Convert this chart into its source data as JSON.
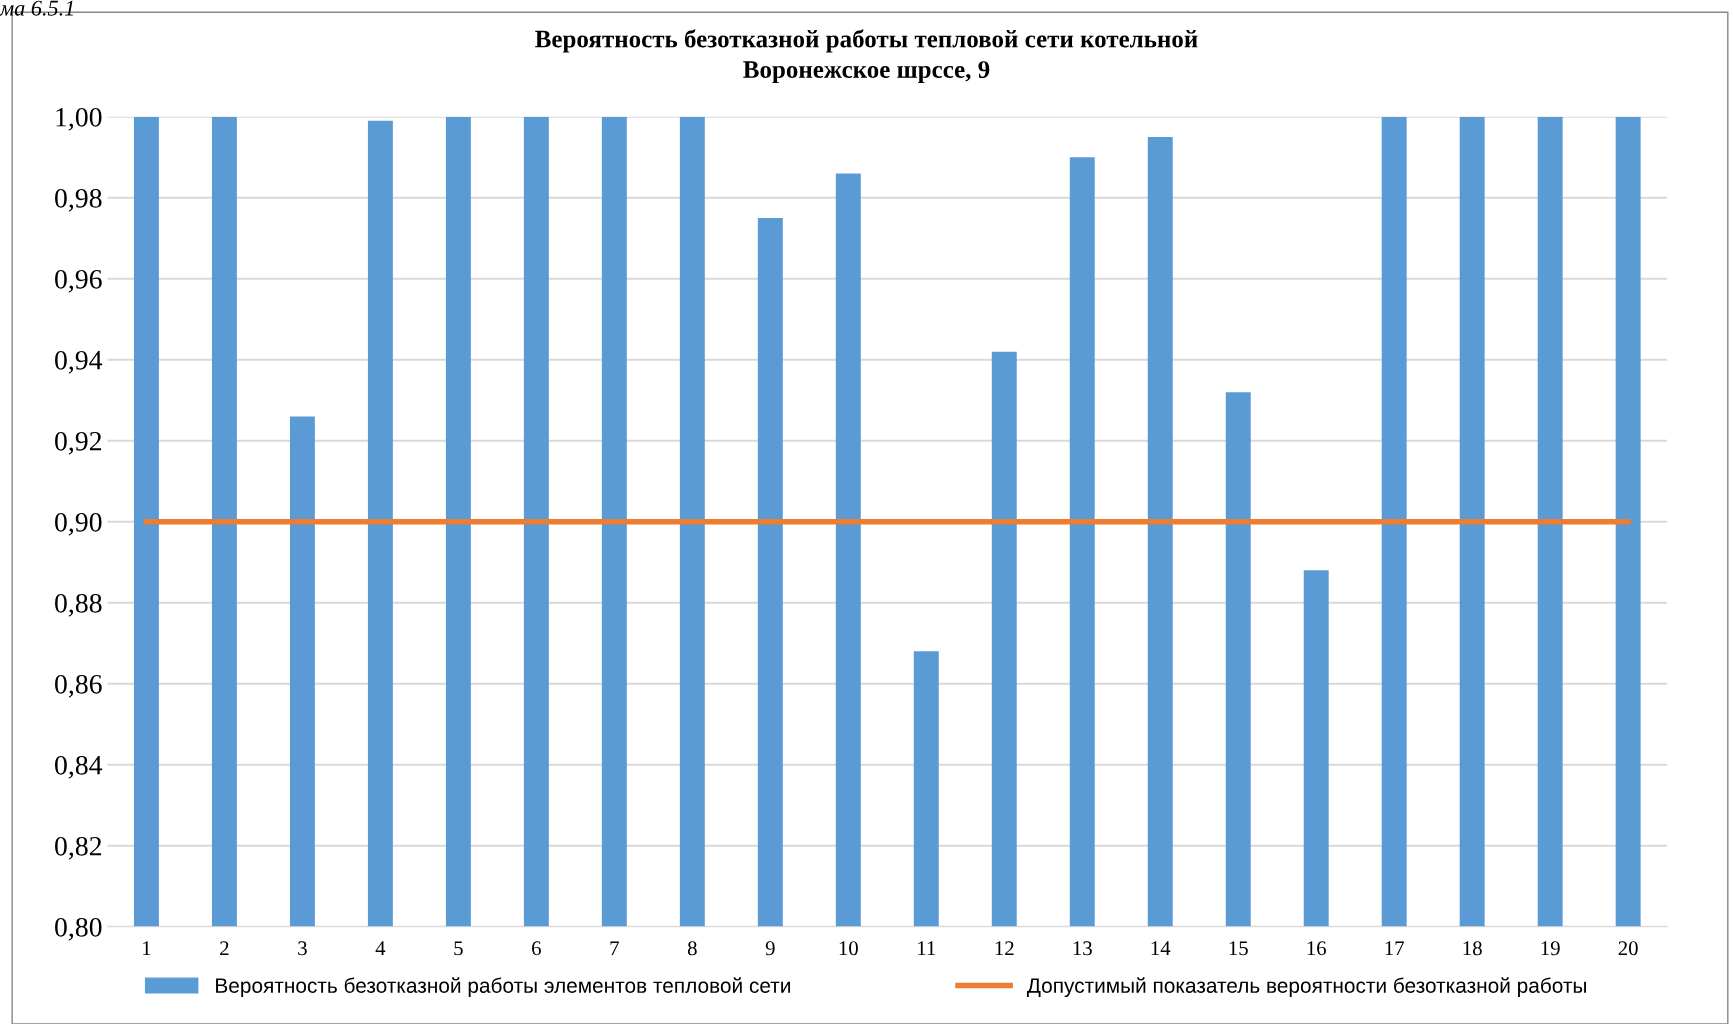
{
  "chart_data": {
    "type": "bar",
    "title": "Вероятность безотказной работы тепловой сети котельной",
    "subtitle": "Воронежское шрссе, 9",
    "annotations": [
      "ма 6.5.1"
    ],
    "categories": [
      "1",
      "2",
      "3",
      "4",
      "5",
      "6",
      "7",
      "8",
      "9",
      "10",
      "11",
      "12",
      "13",
      "14",
      "15",
      "16",
      "17",
      "18",
      "19",
      "20"
    ],
    "series": [
      {
        "name": "Вероятность безотказной работы элементов тепловой сети",
        "color": "#5b9bd5",
        "values": [
          1.0,
          1.0,
          0.926,
          0.999,
          1.0,
          1.0,
          1.0,
          1.0,
          0.975,
          0.986,
          0.868,
          0.942,
          0.99,
          0.995,
          0.932,
          0.888,
          1.0,
          1.0,
          1.0,
          1.0
        ]
      },
      {
        "name": "Допустимый показатель вероятности безотказной работы",
        "color": "#ed7d31",
        "type": "line",
        "values": [
          0.9,
          0.9,
          0.9,
          0.9,
          0.9,
          0.9,
          0.9,
          0.9,
          0.9,
          0.9,
          0.9,
          0.9,
          0.9,
          0.9,
          0.9,
          0.9,
          0.9,
          0.9,
          0.9,
          0.9
        ]
      }
    ],
    "ylim": [
      0.8,
      1.0
    ],
    "yticks": [
      {
        "value": 0.8,
        "label": "0,80"
      },
      {
        "value": 0.82,
        "label": "0,82"
      },
      {
        "value": 0.84,
        "label": "0,84"
      },
      {
        "value": 0.86,
        "label": "0,86"
      },
      {
        "value": 0.88,
        "label": "0,88"
      },
      {
        "value": 0.9,
        "label": "0,90"
      },
      {
        "value": 0.92,
        "label": "0,92"
      },
      {
        "value": 0.94,
        "label": "0,94"
      },
      {
        "value": 0.96,
        "label": "0,96"
      },
      {
        "value": 0.98,
        "label": "0,98"
      },
      {
        "value": 1.0,
        "label": "1,00"
      }
    ],
    "grid": "y",
    "legend": "bottom"
  }
}
